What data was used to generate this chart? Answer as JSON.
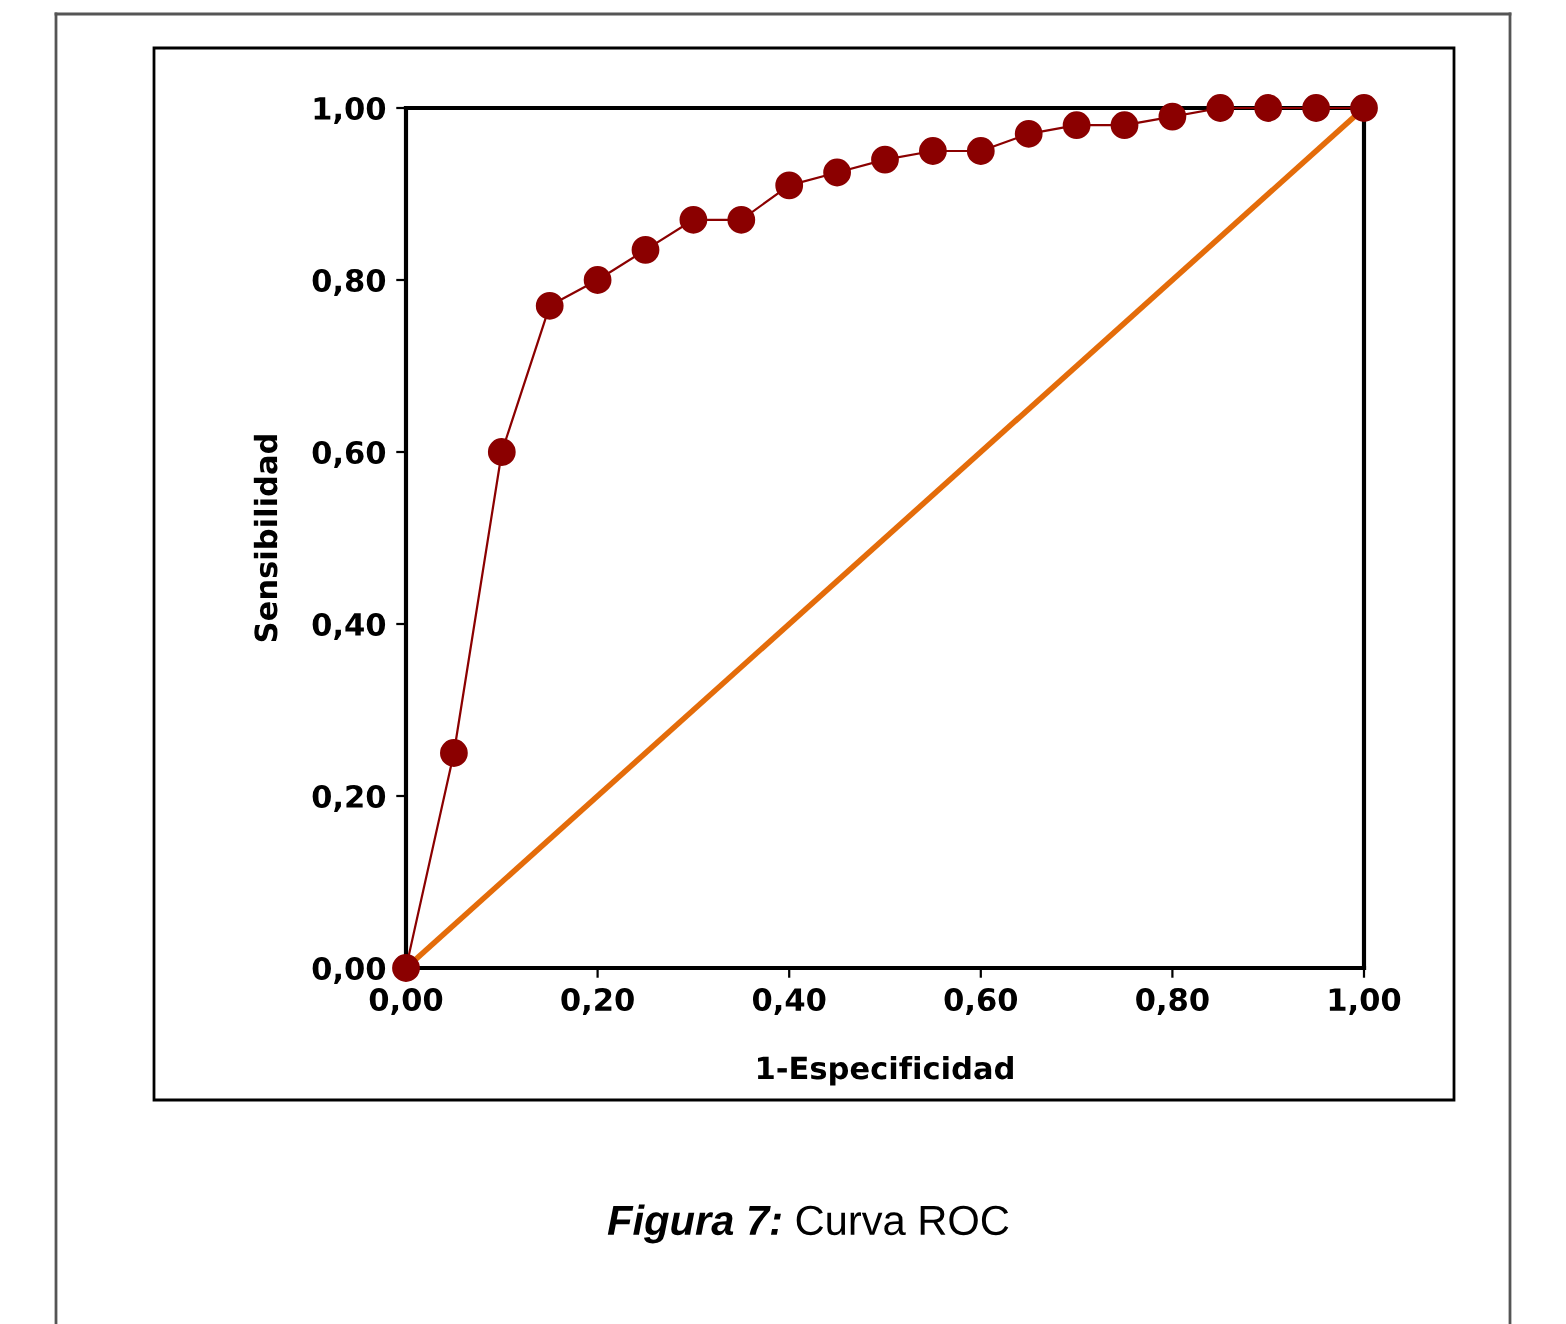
{
  "chart_data": {
    "type": "line",
    "xlabel": "1-Especificidad",
    "ylabel": "Sensibilidad",
    "series": [
      {
        "color": "#e46c0a",
        "x": [
          0,
          1
        ],
        "values": [
          0,
          1
        ],
        "marker": "none"
      },
      {
        "color": "#8b0000",
        "marker": "circle",
        "x": [
          0,
          0.05,
          0.1,
          0.15,
          0.2,
          0.25,
          0.3,
          0.35,
          0.4,
          0.45,
          0.5,
          0.55,
          0.6,
          0.65,
          0.7,
          0.75,
          0.8,
          0.85,
          0.9,
          0.95,
          1.0
        ],
        "values": [
          0,
          0.25,
          0.6,
          0.77,
          0.8,
          0.835,
          0.87,
          0.87,
          0.91,
          0.925,
          0.94,
          0.95,
          0.95,
          0.97,
          0.98,
          0.98,
          0.99,
          1.0,
          1.0,
          1.0,
          1.0
        ]
      }
    ],
    "xlim": [
      0,
      1
    ],
    "ylim": [
      0,
      1
    ],
    "xticks": [
      {
        "value": 0,
        "label": "0,00"
      },
      {
        "value": 0.2,
        "label": "0,20"
      },
      {
        "value": 0.4,
        "label": "0,40"
      },
      {
        "value": 0.6,
        "label": "0,60"
      },
      {
        "value": 0.8,
        "label": "0,80"
      },
      {
        "value": 1,
        "label": "1,00"
      }
    ],
    "yticks": [
      {
        "value": 0,
        "label": "0,00"
      },
      {
        "value": 0.2,
        "label": "0,20"
      },
      {
        "value": 0.4,
        "label": "0,40"
      },
      {
        "value": 0.6,
        "label": "0,60"
      },
      {
        "value": 0.8,
        "label": "0,80"
      },
      {
        "value": 1,
        "label": "1,00"
      }
    ],
    "grid": false,
    "legend": false,
    "annotations": [
      "Figura 7:",
      "Curva ROC"
    ]
  }
}
